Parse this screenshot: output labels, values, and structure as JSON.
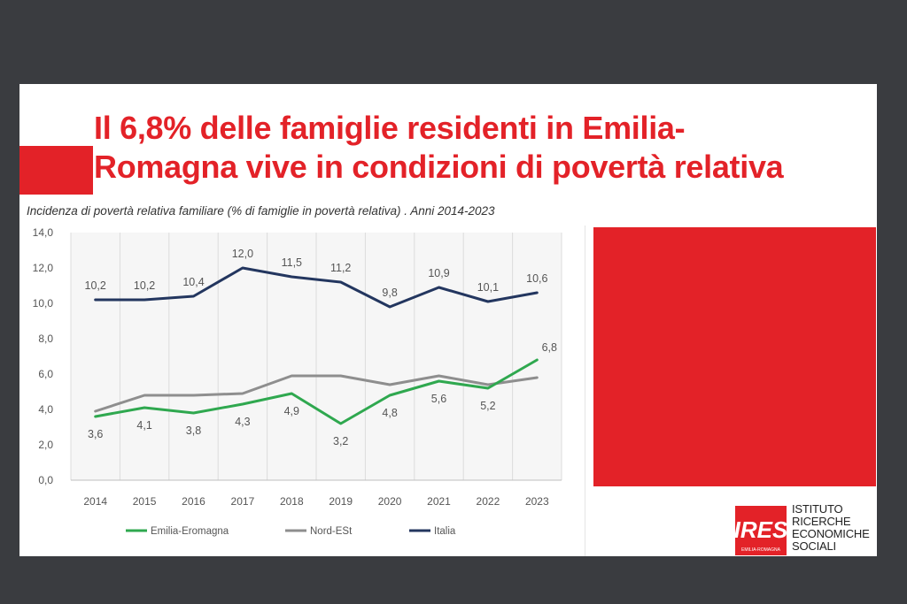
{
  "slide": {
    "headline_line1": "Il 6,8% delle famiglie residenti in Emilia-",
    "headline_line2": "Romagna vive in condizioni di povertà relativa",
    "subtitle": "Incidenza di povertà relativa familiare (% di famiglie in povertà relativa) . Anni 2014-2023",
    "accent_color": "#e32228"
  },
  "logo": {
    "mark_text": "IRES",
    "mark_subtext": "EMILIA-ROMAGNA",
    "line1": "ISTITUTO",
    "line2": "RICERCHE",
    "line3": "ECONOMICHE",
    "line4": "SOCIALI"
  },
  "chart_data": {
    "type": "line",
    "title": "",
    "xlabel": "",
    "ylabel": "",
    "x": [
      "2014",
      "2015",
      "2016",
      "2017",
      "2018",
      "2019",
      "2020",
      "2021",
      "2022",
      "2023"
    ],
    "ylim": [
      0,
      14
    ],
    "yticks": [
      "0,0",
      "2,0",
      "4,0",
      "6,0",
      "8,0",
      "10,0",
      "12,0",
      "14,0"
    ],
    "grid": "vertical",
    "legend": "bottom",
    "series": [
      {
        "name": "Emilia-Eromagna",
        "color": "#2fa84f",
        "values": [
          3.6,
          4.1,
          3.8,
          4.3,
          4.9,
          3.2,
          4.8,
          5.6,
          5.2,
          6.8
        ],
        "labels": [
          "3,6",
          "4,1",
          "3,8",
          "4,3",
          "4,9",
          "3,2",
          "4,8",
          "5,6",
          "5,2",
          "6,8"
        ],
        "label_position": "below-last-above"
      },
      {
        "name": "Nord-ESt",
        "color": "#8e8e8e",
        "values": [
          3.9,
          4.8,
          4.8,
          4.9,
          5.9,
          5.9,
          5.4,
          5.9,
          5.4,
          5.8
        ],
        "labels": null
      },
      {
        "name": "Italia",
        "color": "#23365f",
        "values": [
          10.2,
          10.2,
          10.4,
          12.0,
          11.5,
          11.2,
          9.8,
          10.9,
          10.1,
          10.6
        ],
        "labels": [
          "10,2",
          "10,2",
          "10,4",
          "12,0",
          "11,5",
          "11,2",
          "9,8",
          "10,9",
          "10,1",
          "10,6"
        ],
        "label_position": "above"
      }
    ]
  }
}
